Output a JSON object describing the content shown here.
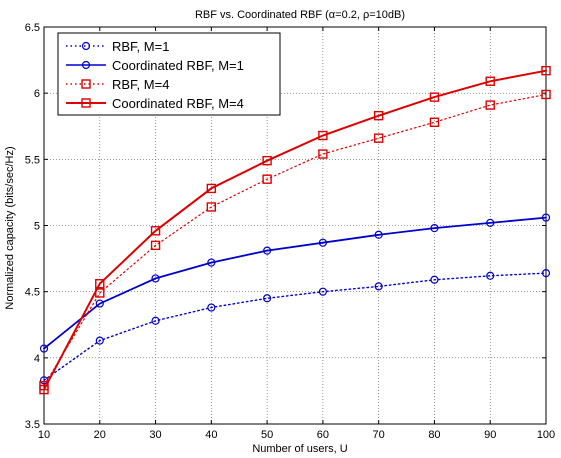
{
  "chart_data": {
    "type": "line",
    "title": "RBF vs. Coordinated RBF (α=0.2, ρ=10dB)",
    "xlabel": "Number of users, U",
    "ylabel": "Normalized capacity (bits/sec/Hz)",
    "xlim": [
      10,
      100
    ],
    "ylim": [
      3.5,
      6.5
    ],
    "x_ticks": [
      10,
      20,
      30,
      40,
      50,
      60,
      70,
      80,
      90,
      100
    ],
    "y_ticks": [
      3.5,
      4,
      4.5,
      5,
      5.5,
      6,
      6.5
    ],
    "x_tick_labels": [
      "10",
      "20",
      "30",
      "40",
      "50",
      "60",
      "70",
      "80",
      "90",
      "100"
    ],
    "y_tick_labels": [
      "3.5",
      "4",
      "4.5",
      "5",
      "5.5",
      "6",
      "6.5"
    ],
    "grid": true,
    "legend_position": "top-left",
    "x": [
      10,
      20,
      30,
      40,
      50,
      60,
      70,
      80,
      90,
      100
    ],
    "series": [
      {
        "name": "RBF, M=1",
        "values": [
          3.83,
          4.13,
          4.28,
          4.38,
          4.45,
          4.5,
          4.54,
          4.59,
          4.62,
          4.64
        ],
        "color": "#0000cc",
        "line_style": "dotted",
        "marker": "circle"
      },
      {
        "name": "Coordinated RBF, M=1",
        "values": [
          4.07,
          4.41,
          4.6,
          4.72,
          4.81,
          4.87,
          4.93,
          4.98,
          5.02,
          5.06
        ],
        "color": "#0000cc",
        "line_style": "solid",
        "marker": "circle"
      },
      {
        "name": "RBF, M=4",
        "values": [
          3.79,
          4.49,
          4.85,
          5.14,
          5.35,
          5.54,
          5.66,
          5.78,
          5.91,
          5.99
        ],
        "color": "#dd0000",
        "line_style": "dotted",
        "marker": "square"
      },
      {
        "name": "Coordinated RBF, M=4",
        "values": [
          3.76,
          4.56,
          4.96,
          5.28,
          5.49,
          5.68,
          5.83,
          5.97,
          6.09,
          6.17
        ],
        "color": "#dd0000",
        "line_style": "solid",
        "marker": "square"
      }
    ]
  }
}
